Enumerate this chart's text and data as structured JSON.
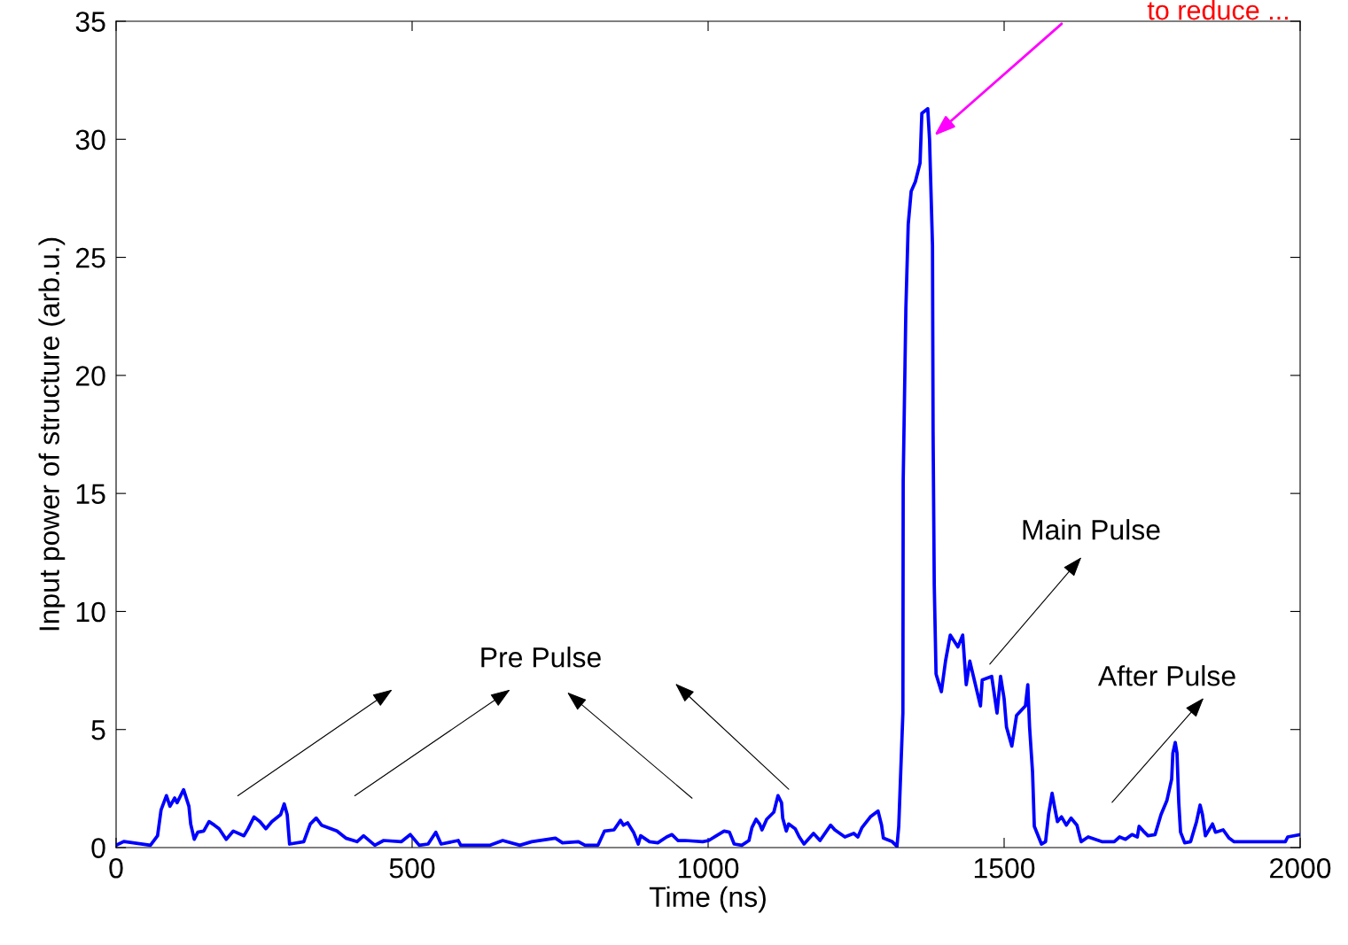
{
  "chart_data": {
    "type": "line",
    "xlabel": "Time (ns)",
    "ylabel": "Input power of structure (arb.u.)",
    "xlim": [
      0,
      2000
    ],
    "ylim": [
      0,
      35
    ],
    "xticks": [
      0,
      500,
      1000,
      1500,
      2000
    ],
    "yticks": [
      0,
      5,
      10,
      15,
      20,
      25,
      30,
      35
    ],
    "grid": false,
    "legend": false,
    "marker": "none",
    "line_style": "solid",
    "annotations": [
      "to reduce ...",
      "Pre Pulse",
      "Main Pulse",
      "After Pulse"
    ],
    "series": [
      {
        "color": "#0000ff",
        "x": [
          0,
          13,
          58,
          70,
          76,
          85,
          91,
          99,
          103,
          114,
          123,
          126,
          132,
          138,
          148,
          157,
          166,
          174,
          186,
          198,
          216,
          223,
          233,
          243,
          253,
          263,
          278,
          284,
          289,
          293,
          317,
          328,
          338,
          347,
          373,
          388,
          407,
          418,
          437,
          452,
          482,
          497,
          512,
          527,
          540,
          549,
          578,
          582,
          632,
          653,
          682,
          702,
          742,
          754,
          781,
          792,
          814,
          825,
          841,
          852,
          857,
          864,
          874,
          882,
          886,
          901,
          915,
          930,
          939,
          949,
          961,
          991,
          1001,
          1014,
          1027,
          1036,
          1044,
          1057,
          1069,
          1074,
          1081,
          1087,
          1091,
          1099,
          1111,
          1118,
          1124,
          1126,
          1132,
          1136,
          1147,
          1154,
          1162,
          1178,
          1189,
          1207,
          1214,
          1231,
          1246,
          1253,
          1260,
          1274,
          1287,
          1293,
          1296,
          1311,
          1319,
          1322,
          1329,
          1329.5,
          1334,
          1338,
          1343,
          1350,
          1358,
          1361,
          1371,
          1374,
          1379,
          1380,
          1382,
          1385,
          1394,
          1401,
          1409,
          1422,
          1430,
          1436,
          1442,
          1460,
          1463,
          1479,
          1488,
          1494,
          1500,
          1504,
          1513,
          1521,
          1536,
          1540,
          1543,
          1548,
          1551,
          1563,
          1570,
          1575,
          1581,
          1585,
          1590,
          1597,
          1605,
          1613,
          1623,
          1630,
          1642,
          1665,
          1686,
          1695,
          1705,
          1716,
          1725,
          1728,
          1735,
          1743,
          1755,
          1765,
          1775,
          1783,
          1785,
          1789,
          1792,
          1795,
          1798,
          1805,
          1815,
          1825,
          1831,
          1835,
          1840,
          1852,
          1857,
          1870,
          1880,
          1888,
          1975,
          1979,
          2000
        ],
        "values": [
          0.1,
          0.26,
          0.1,
          0.5,
          1.6,
          2.2,
          1.75,
          2.1,
          1.9,
          2.45,
          1.75,
          1.0,
          0.35,
          0.65,
          0.7,
          1.1,
          0.95,
          0.8,
          0.35,
          0.7,
          0.5,
          0.8,
          1.3,
          1.1,
          0.8,
          1.1,
          1.4,
          1.85,
          1.4,
          0.15,
          0.25,
          1.0,
          1.25,
          0.95,
          0.7,
          0.4,
          0.25,
          0.5,
          0.1,
          0.3,
          0.25,
          0.55,
          0.1,
          0.15,
          0.65,
          0.15,
          0.3,
          0.1,
          0.1,
          0.3,
          0.1,
          0.25,
          0.4,
          0.2,
          0.25,
          0.1,
          0.1,
          0.7,
          0.75,
          1.15,
          0.95,
          1.05,
          0.65,
          0.15,
          0.5,
          0.25,
          0.2,
          0.45,
          0.55,
          0.3,
          0.3,
          0.25,
          0.3,
          0.5,
          0.7,
          0.65,
          0.15,
          0.1,
          0.3,
          0.85,
          1.2,
          1.0,
          0.75,
          1.2,
          1.5,
          2.2,
          1.9,
          1.25,
          0.7,
          1.0,
          0.8,
          0.45,
          0.15,
          0.6,
          0.3,
          0.95,
          0.75,
          0.45,
          0.6,
          0.45,
          0.85,
          1.3,
          1.55,
          0.95,
          0.4,
          0.25,
          0.05,
          0.9,
          5.7,
          15.5,
          22.8,
          26.4,
          27.8,
          28.2,
          29.0,
          31.1,
          31.3,
          30.0,
          25.5,
          17.6,
          11.1,
          7.35,
          6.6,
          7.9,
          9.0,
          8.5,
          9.0,
          6.9,
          7.9,
          6.0,
          7.1,
          7.25,
          5.7,
          7.25,
          6.3,
          5.1,
          4.3,
          5.6,
          6.0,
          6.9,
          5.1,
          3.2,
          0.9,
          0.15,
          0.25,
          1.4,
          2.3,
          1.75,
          1.1,
          1.3,
          0.95,
          1.25,
          0.95,
          0.25,
          0.45,
          0.25,
          0.25,
          0.45,
          0.35,
          0.55,
          0.45,
          0.9,
          0.7,
          0.5,
          0.55,
          1.4,
          2.0,
          2.9,
          4.0,
          4.45,
          4.0,
          1.9,
          0.65,
          0.2,
          0.25,
          1.1,
          1.8,
          1.4,
          0.5,
          1.0,
          0.65,
          0.75,
          0.4,
          0.25,
          0.25,
          0.45,
          0.55
        ]
      }
    ]
  }
}
